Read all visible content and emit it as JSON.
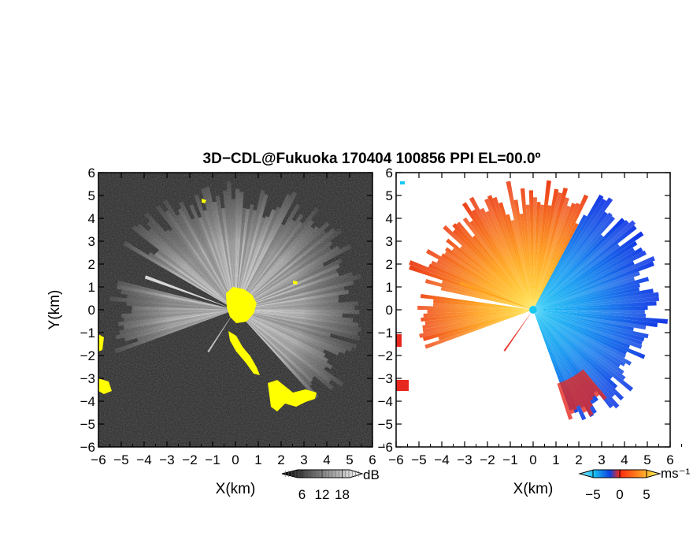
{
  "chart_data": {
    "type": "heatmap",
    "title": "3D−CDL@Fukuoka 170404 100856 PPI EL=00.0º",
    "panels": [
      {
        "id": "reflectivity",
        "xlabel": "X(km)",
        "ylabel": "Y(km)",
        "xlim": [
          -6,
          6
        ],
        "ylim": [
          -6,
          6
        ],
        "xticks": [
          "−6",
          "−5",
          "−4",
          "−3",
          "−2",
          "−1",
          "0",
          "1",
          "2",
          "3",
          "4",
          "5",
          "6"
        ],
        "yticks": [
          "−6",
          "−5",
          "−4",
          "−3",
          "−2",
          "−1",
          "0",
          "1",
          "2",
          "3",
          "4",
          "5",
          "6"
        ],
        "colorbar": {
          "unit": "dB",
          "ticks": [
            "6",
            "12",
            "18"
          ],
          "range": [
            0,
            24
          ]
        },
        "colors": {
          "background": "#3a3a3a",
          "echo_max": "#f2f2f2",
          "flag": "#ffff00"
        }
      },
      {
        "id": "velocity",
        "xlabel": "X(km)",
        "ylabel": "",
        "xlim": [
          -6,
          6
        ],
        "ylim": [
          -6,
          6
        ],
        "xticks": [
          "−6",
          "−5",
          "−4",
          "−3",
          "−2",
          "−1",
          "0",
          "1",
          "2",
          "3",
          "4",
          "5",
          "6"
        ],
        "yticks": [
          "−6",
          "−5",
          "−4",
          "−3",
          "−2",
          "−1",
          "0",
          "1",
          "2",
          "3",
          "4",
          "5",
          "6"
        ],
        "colorbar": {
          "unit": "ms⁻¹",
          "ticks": [
            "−5",
            "0",
            "5"
          ],
          "range": [
            -7.5,
            7.5
          ]
        },
        "colors": {
          "negative_strong": "#0a1ee6",
          "negative_weak": "#12b4f0",
          "positive_weak": "#ffd21e",
          "positive_strong": "#e61e0a"
        }
      }
    ]
  }
}
